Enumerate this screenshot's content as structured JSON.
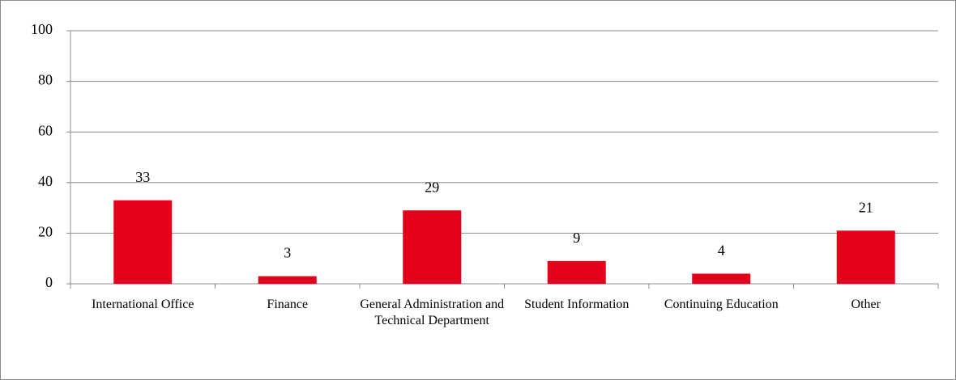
{
  "chart_data": {
    "type": "bar",
    "categories": [
      "International Office",
      "Finance",
      "General Administration and Technical Department",
      "Student Information",
      "Continuing Education",
      "Other"
    ],
    "values": [
      33,
      3,
      29,
      9,
      4,
      21
    ],
    "color": "#e2001a",
    "ylim": [
      0,
      100
    ],
    "yticks": [
      0,
      20,
      40,
      60,
      80,
      100
    ],
    "grid": true
  }
}
